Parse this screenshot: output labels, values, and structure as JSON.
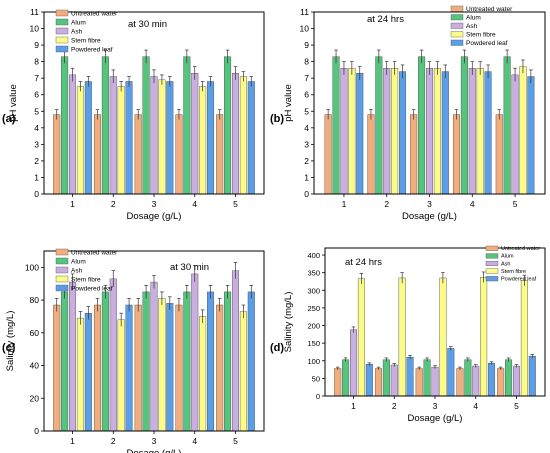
{
  "colors": {
    "Untreated water": "#f2ad7c",
    "Alum": "#55c47d",
    "Ash": "#c9aee0",
    "Stem fibre": "#fbfb88",
    "Powdered leaf": "#5b9ee8",
    "error_bar": "#333333"
  },
  "chart_data": [
    {
      "id": "a",
      "type": "bar",
      "panel_label": "(a)",
      "annotation": "at 30 min",
      "xlabel": "Dosage (g/L)",
      "ylabel": "pH value",
      "categories": [
        "1",
        "2",
        "3",
        "4",
        "5"
      ],
      "ylim": [
        0,
        11
      ],
      "yticks": [
        "0",
        "1",
        "2",
        "3",
        "4",
        "5",
        "6",
        "7",
        "8",
        "9",
        "10",
        "11"
      ],
      "legend_position": "top-left",
      "series": [
        {
          "name": "Untreated water",
          "values": [
            4.8,
            4.8,
            4.8,
            4.8,
            4.8
          ],
          "errors": [
            0.3,
            0.3,
            0.3,
            0.3,
            0.3
          ]
        },
        {
          "name": "Alum",
          "values": [
            8.3,
            8.3,
            8.3,
            8.3,
            8.3
          ],
          "errors": [
            0.4,
            0.4,
            0.4,
            0.4,
            0.4
          ]
        },
        {
          "name": "Ash",
          "values": [
            7.2,
            7.1,
            7.1,
            7.3,
            7.3
          ],
          "errors": [
            0.4,
            0.4,
            0.4,
            0.4,
            0.4
          ]
        },
        {
          "name": "Stem fibre",
          "values": [
            6.5,
            6.5,
            6.9,
            6.5,
            7.1
          ],
          "errors": [
            0.3,
            0.3,
            0.3,
            0.3,
            0.3
          ]
        },
        {
          "name": "Powdered leaf",
          "values": [
            6.8,
            6.8,
            6.8,
            6.8,
            6.8
          ],
          "errors": [
            0.3,
            0.3,
            0.3,
            0.3,
            0.3
          ]
        }
      ]
    },
    {
      "id": "b",
      "type": "bar",
      "panel_label": "(b)",
      "annotation": "at 24 hrs",
      "xlabel": "Dosage (g/L)",
      "ylabel": "pH value",
      "categories": [
        "1",
        "2",
        "3",
        "4",
        "5"
      ],
      "ylim": [
        0,
        11
      ],
      "yticks": [
        "0",
        "1",
        "2",
        "3",
        "4",
        "5",
        "6",
        "7",
        "8",
        "9",
        "10",
        "11"
      ],
      "legend_position": "top-right",
      "series": [
        {
          "name": "Untreated water",
          "values": [
            4.8,
            4.8,
            4.8,
            4.8,
            4.8
          ],
          "errors": [
            0.3,
            0.3,
            0.3,
            0.3,
            0.3
          ]
        },
        {
          "name": "Alum",
          "values": [
            8.3,
            8.3,
            8.3,
            8.3,
            8.3
          ],
          "errors": [
            0.4,
            0.4,
            0.4,
            0.4,
            0.4
          ]
        },
        {
          "name": "Ash",
          "values": [
            7.6,
            7.6,
            7.6,
            7.6,
            7.2
          ],
          "errors": [
            0.4,
            0.4,
            0.4,
            0.4,
            0.4
          ]
        },
        {
          "name": "Stem fibre",
          "values": [
            7.6,
            7.6,
            7.6,
            7.6,
            7.7
          ],
          "errors": [
            0.4,
            0.4,
            0.4,
            0.4,
            0.4
          ]
        },
        {
          "name": "Powdered leaf",
          "values": [
            7.3,
            7.4,
            7.4,
            7.4,
            7.1
          ],
          "errors": [
            0.4,
            0.4,
            0.4,
            0.4,
            0.4
          ]
        }
      ]
    },
    {
      "id": "c",
      "type": "bar",
      "panel_label": "(c)",
      "annotation": "at 30 min",
      "xlabel": "Dosage (g/L)",
      "ylabel": "Salinity (mg/L)",
      "categories": [
        "1",
        "2",
        "3",
        "4",
        "5"
      ],
      "ylim": [
        0,
        110
      ],
      "yticks": [
        "0",
        "20",
        "40",
        "60",
        "80",
        "100"
      ],
      "legend_position": "top-left",
      "series": [
        {
          "name": "Untreated water",
          "values": [
            77,
            77,
            77,
            77,
            77
          ],
          "errors": [
            4,
            4,
            4,
            4,
            4
          ]
        },
        {
          "name": "Alum",
          "values": [
            85,
            85,
            85,
            85,
            85
          ],
          "errors": [
            4,
            4,
            4,
            4,
            4
          ]
        },
        {
          "name": "Ash",
          "values": [
            91,
            93,
            91,
            96,
            98
          ],
          "errors": [
            5,
            5,
            4,
            5,
            5
          ]
        },
        {
          "name": "Stem fibre",
          "values": [
            69,
            68,
            81,
            70,
            73
          ],
          "errors": [
            4,
            4,
            4,
            4,
            4
          ]
        },
        {
          "name": "Powdered leaf",
          "values": [
            72,
            77,
            78,
            85,
            85
          ],
          "errors": [
            4,
            4,
            4,
            4,
            4
          ]
        }
      ]
    },
    {
      "id": "d",
      "type": "bar",
      "panel_label": "(d)",
      "annotation": "at 24 hrs",
      "xlabel": "Dosage (g/L)",
      "ylabel": "Salinity (mg/L)",
      "categories": [
        "1",
        "2",
        "3",
        "4",
        "5"
      ],
      "ylim": [
        0,
        420
      ],
      "yticks": [
        "0",
        "50",
        "100",
        "150",
        "200",
        "250",
        "300",
        "350",
        "400"
      ],
      "legend_position": "top-right",
      "series": [
        {
          "name": "Untreated water",
          "values": [
            78,
            78,
            78,
            78,
            78
          ],
          "errors": [
            4,
            4,
            4,
            4,
            4
          ]
        },
        {
          "name": "Alum",
          "values": [
            103,
            103,
            103,
            103,
            103
          ],
          "errors": [
            5,
            5,
            5,
            5,
            5
          ]
        },
        {
          "name": "Ash",
          "values": [
            188,
            88,
            82,
            85,
            85
          ],
          "errors": [
            8,
            4,
            4,
            4,
            4
          ]
        },
        {
          "name": "Stem fibre",
          "values": [
            333,
            335,
            335,
            337,
            328
          ],
          "errors": [
            15,
            15,
            15,
            15,
            15
          ]
        },
        {
          "name": "Powdered leaf",
          "values": [
            90,
            110,
            135,
            93,
            113
          ],
          "errors": [
            4,
            5,
            5,
            4,
            5
          ]
        }
      ]
    }
  ]
}
